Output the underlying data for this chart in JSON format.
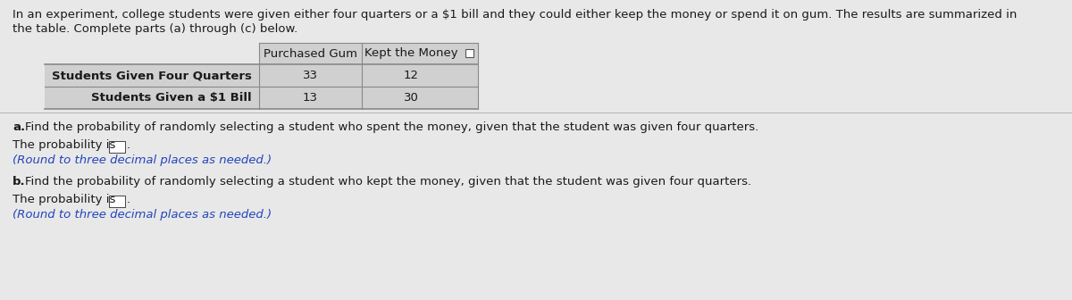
{
  "intro_text_line1": "In an experiment, college students were given either four quarters or a $1 bill and they could either keep the money or spend it on gum. The results are summarized in",
  "intro_text_line2": "the table. Complete parts (a) through (c) below.",
  "table": {
    "col_headers": [
      "Purchased Gum",
      "Kept the Money"
    ],
    "rows": [
      {
        "label": "Students Given Four Quarters",
        "values": [
          33,
          12
        ]
      },
      {
        "label": "Students Given a $1 Bill",
        "values": [
          13,
          30
        ]
      }
    ]
  },
  "part_a_label": "a.",
  "part_a_text": "Find the probability of randomly selecting a student who spent the money, given that the student was given four quarters.",
  "part_a_prob_text": "The probability is",
  "part_a_round_text": "(Round to three decimal places as needed.)",
  "part_b_label": "b.",
  "part_b_text": "Find the probability of randomly selecting a student who kept the money, given that the student was given four quarters.",
  "part_b_prob_text": "The probability is",
  "part_b_round_text": "(Round to three decimal places as needed.)",
  "bg_color": "#e8e8e8",
  "text_color": "#1a1a1a",
  "blue_color": "#2244bb",
  "table_bg": "#d0d0d0",
  "line_color": "#888888",
  "white": "#ffffff"
}
